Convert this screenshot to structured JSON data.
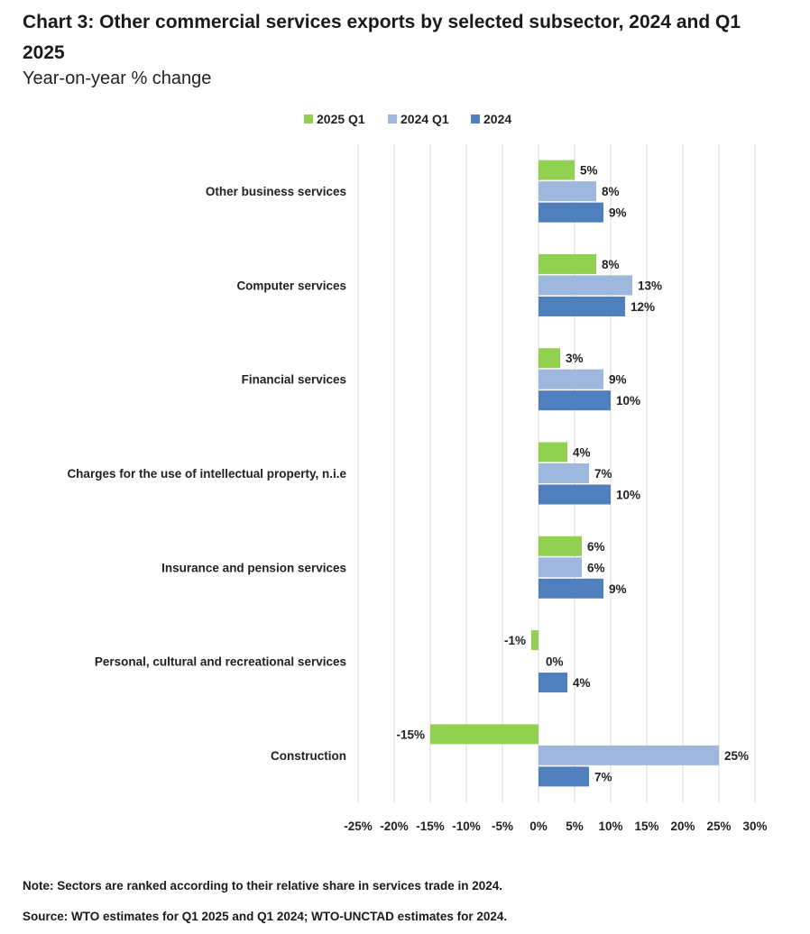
{
  "header": {
    "title": "Chart 3: Other commercial services exports by selected subsector, 2024 and Q1 2025",
    "subtitle": "Year-on-year % change"
  },
  "notes": {
    "note": "Note: Sectors are ranked according to their relative share in services trade in 2024.",
    "source": "Source: WTO estimates for Q1 2025 and Q1 2024; WTO-UNCTAD estimates for 2024."
  },
  "colors": {
    "s2025q1": "#92d050",
    "s2024q1": "#9db8dc",
    "s2024": "#4f7fbd",
    "grid": "#d9d9d9"
  },
  "chart_data": {
    "type": "bar",
    "orientation": "horizontal",
    "title": "Chart 3: Other commercial services exports by selected subsector, 2024 and Q1 2025",
    "ylabel": "Year-on-year % change",
    "categories": [
      "Other business services",
      "Computer services",
      "Financial services",
      "Charges for the use of intellectual property, n.i.e",
      "Insurance and pension services",
      "Personal, cultural and recreational services",
      "Construction"
    ],
    "series": [
      {
        "name": "2025 Q1",
        "color": "#92d050",
        "values": [
          5,
          8,
          3,
          4,
          6,
          -1,
          -15
        ]
      },
      {
        "name": "2024 Q1",
        "color": "#9db8dc",
        "values": [
          8,
          13,
          9,
          7,
          6,
          0,
          25
        ]
      },
      {
        "name": "2024",
        "color": "#4f7fbd",
        "values": [
          9,
          12,
          10,
          10,
          9,
          4,
          7
        ]
      }
    ],
    "data_labels": [
      [
        "5%",
        "8%",
        "3%",
        "4%",
        "6%",
        "-1%",
        "-15%"
      ],
      [
        "8%",
        "13%",
        "9%",
        "7%",
        "6%",
        "0%",
        "25%"
      ],
      [
        "9%",
        "12%",
        "10%",
        "10%",
        "9%",
        "4%",
        "7%"
      ]
    ],
    "xlim": [
      -25,
      30
    ],
    "xticks": [
      -25,
      -20,
      -15,
      -10,
      -5,
      0,
      5,
      10,
      15,
      20,
      25,
      30
    ],
    "xtick_labels": [
      "-25%",
      "-20%",
      "-15%",
      "-10%",
      "-5%",
      "0%",
      "5%",
      "10%",
      "15%",
      "20%",
      "25%",
      "30%"
    ],
    "legend_position": "top",
    "grid": true
  }
}
